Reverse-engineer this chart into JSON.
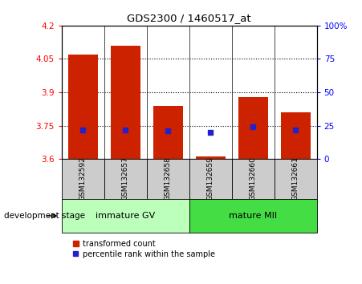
{
  "title": "GDS2300 / 1460517_at",
  "samples": [
    "GSM132592",
    "GSM132657",
    "GSM132658",
    "GSM132659",
    "GSM132660",
    "GSM132661"
  ],
  "bar_values": [
    4.07,
    4.11,
    3.84,
    3.61,
    3.88,
    3.81
  ],
  "bar_base": 3.6,
  "percentile_values": [
    22,
    22,
    21,
    20,
    24,
    22
  ],
  "ylim": [
    3.6,
    4.2
  ],
  "ylim_right": [
    0,
    100
  ],
  "yticks_left": [
    3.6,
    3.75,
    3.9,
    4.05,
    4.2
  ],
  "yticks_right": [
    0,
    25,
    50,
    75,
    100
  ],
  "ytick_labels_right": [
    "0",
    "25",
    "50",
    "75",
    "100%"
  ],
  "hlines": [
    3.75,
    3.9,
    4.05
  ],
  "bar_color": "#cc2200",
  "dot_color": "#2222cc",
  "bar_width": 0.7,
  "group1_label": "immature GV",
  "group2_label": "mature MII",
  "group1_indices": [
    0,
    1,
    2
  ],
  "group2_indices": [
    3,
    4,
    5
  ],
  "group1_color": "#bbffbb",
  "group2_color": "#44dd44",
  "stage_label": "development stage",
  "legend_bar_label": "transformed count",
  "legend_dot_label": "percentile rank within the sample",
  "sample_bg_color": "#cccccc",
  "fig_width": 4.51,
  "fig_height": 3.54
}
